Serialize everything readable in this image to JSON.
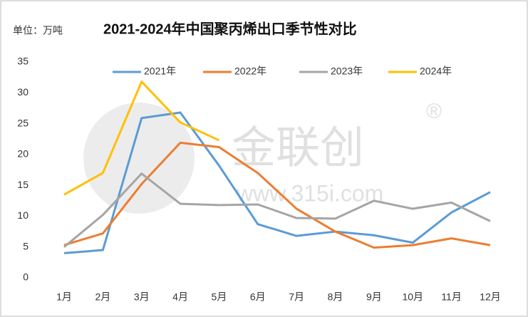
{
  "chart_data": {
    "type": "line",
    "title": "2021-2024年中国聚丙烯出口季节性对比",
    "y_label": "单位：万吨",
    "watermark": [
      "金联创",
      "®",
      "www.315i.com"
    ],
    "categories": [
      "1月",
      "2月",
      "3月",
      "4月",
      "5月",
      "6月",
      "7月",
      "8月",
      "9月",
      "10月",
      "11月",
      "12月"
    ],
    "series": [
      {
        "name": "2021年",
        "color": "#5b9bd5",
        "values": [
          4.0,
          4.5,
          25.9,
          26.8,
          18.2,
          8.7,
          6.8,
          7.5,
          6.9,
          5.7,
          10.6,
          13.9
        ]
      },
      {
        "name": "2022年",
        "color": "#ed7d31",
        "values": [
          5.3,
          7.2,
          15.2,
          21.9,
          21.2,
          17.0,
          11.2,
          7.5,
          4.9,
          5.3,
          6.4,
          5.3
        ]
      },
      {
        "name": "2023年",
        "color": "#a5a5a5",
        "values": [
          5.0,
          10.2,
          16.9,
          12.0,
          11.8,
          11.9,
          9.7,
          9.6,
          12.5,
          11.2,
          12.2,
          9.2
        ]
      },
      {
        "name": "2024年",
        "color": "#ffc000",
        "values": [
          13.5,
          17.0,
          31.8,
          25.2,
          22.3,
          null,
          null,
          null,
          null,
          null,
          null,
          null
        ]
      }
    ],
    "ylim": [
      0,
      35
    ],
    "yticks": [
      0,
      5,
      10,
      15,
      20,
      25,
      30,
      35
    ],
    "grid": false,
    "legend": "top"
  }
}
